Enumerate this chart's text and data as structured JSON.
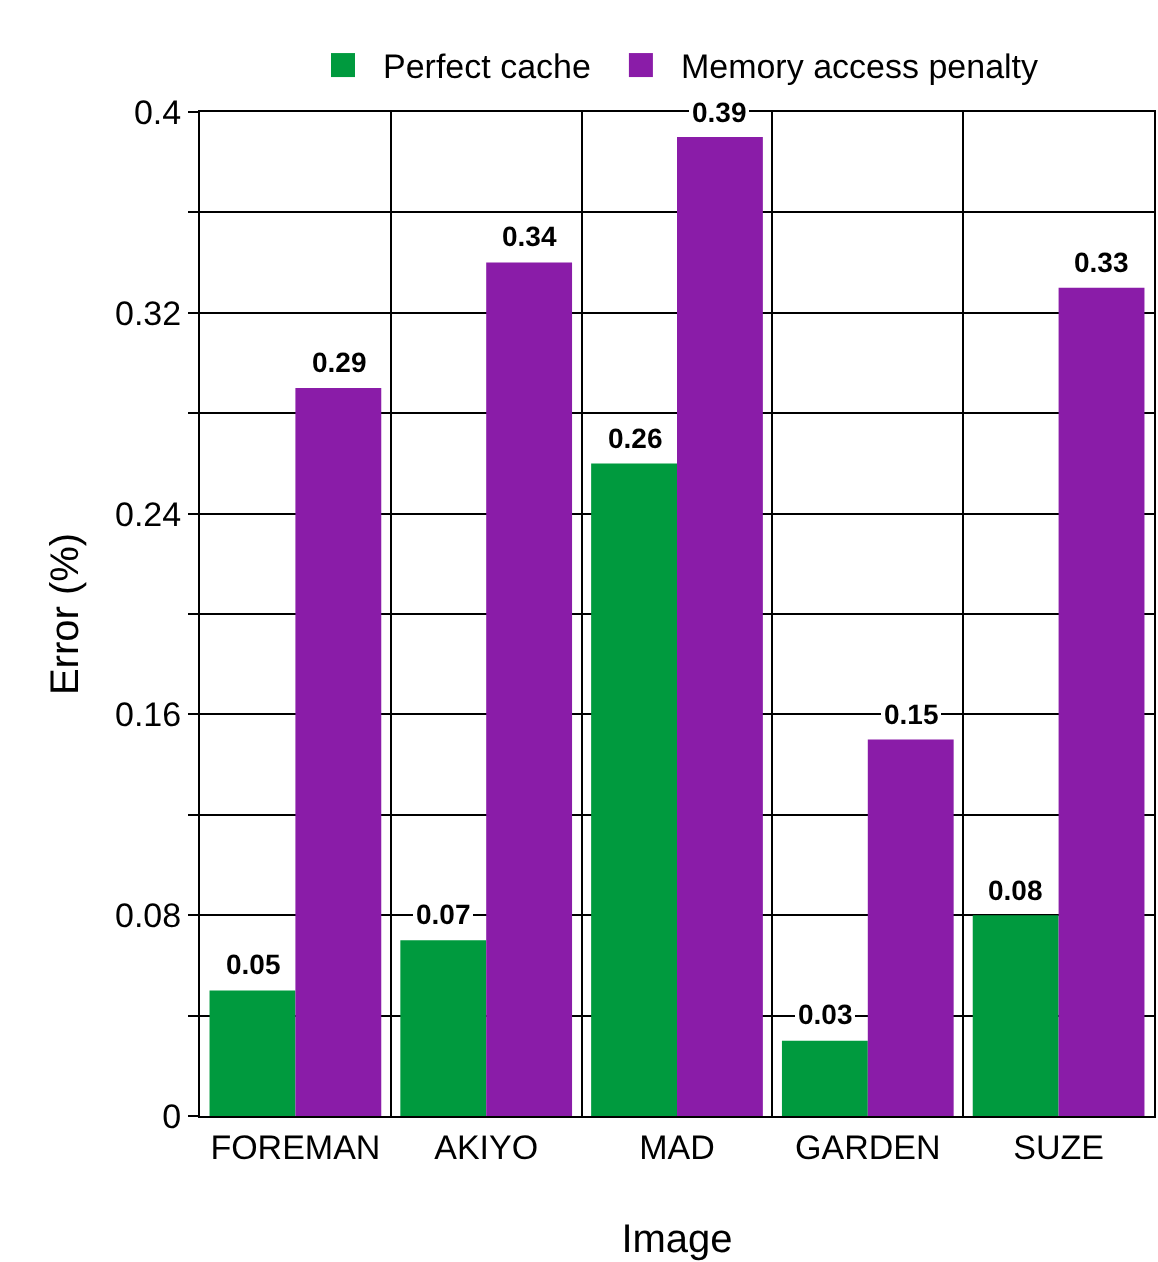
{
  "chart_data": {
    "type": "bar",
    "xlabel": "Image",
    "ylabel": "Error (%)",
    "categories": [
      "FOREMAN",
      "AKIYO",
      "MAD",
      "GARDEN",
      "SUZE"
    ],
    "series": [
      {
        "name": "Perfect cache",
        "color": "#009a3e",
        "values": [
          0.05,
          0.07,
          0.26,
          0.03,
          0.08
        ]
      },
      {
        "name": "Memory access penalty",
        "color": "#8a1ca8",
        "values": [
          0.29,
          0.34,
          0.39,
          0.15,
          0.33
        ]
      }
    ],
    "ylim": [
      0,
      0.4
    ],
    "yticks": [
      0,
      {
        "value": 0.04,
        "label": null
      },
      0.08,
      {
        "value": 0.12,
        "label": null
      },
      0.16,
      {
        "value": 0.2,
        "label": null
      },
      0.24,
      {
        "value": 0.28,
        "label": null
      },
      0.32,
      {
        "value": 0.36,
        "label": null
      },
      0.4
    ],
    "grid": true,
    "legend": "top",
    "data_labels": true
  }
}
